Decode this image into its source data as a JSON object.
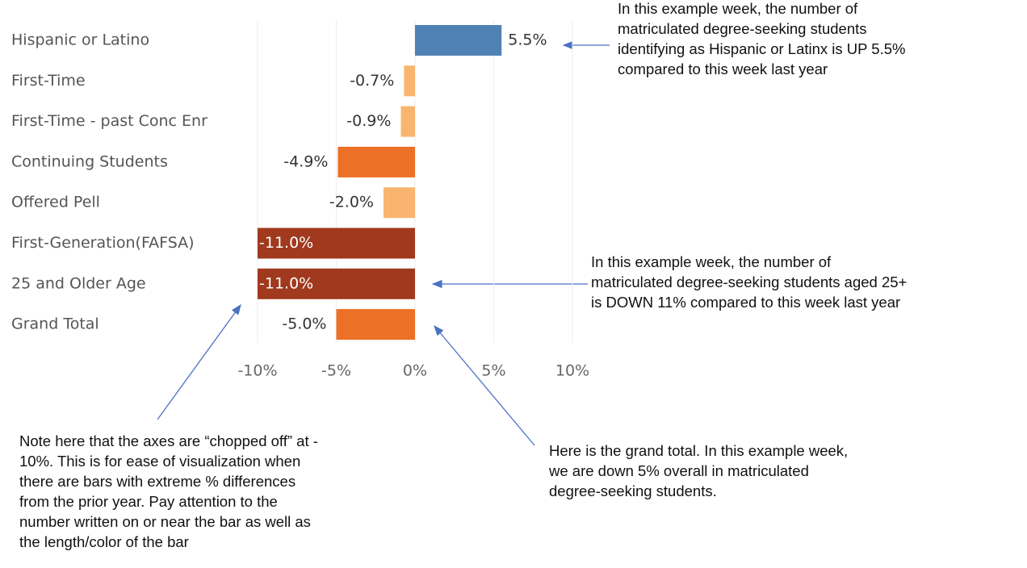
{
  "chart_data": {
    "type": "hbar",
    "categories": [
      "Hispanic or Latino",
      "First-Time",
      "First-Time - past Conc Enr",
      "Continuing Students",
      "Offered Pell",
      "First-Generation(FAFSA)",
      "25 and Older Age",
      "Grand Total"
    ],
    "values": [
      5.5,
      -0.7,
      -0.9,
      -4.9,
      -2.0,
      -11.0,
      -11.0,
      -5.0
    ],
    "value_labels": [
      "5.5%",
      "-0.7%",
      "-0.9%",
      "-4.9%",
      "-2.0%",
      "-11.0%",
      "-11.0%",
      "-5.0%"
    ],
    "colors": [
      "#4f81b5",
      "#f9b56f",
      "#f9b56f",
      "#ec7026",
      "#f9b56f",
      "#a0391e",
      "#a0391e",
      "#ec7026"
    ],
    "xlim": [
      -10,
      10
    ],
    "xticks": [
      {
        "value": -10,
        "label": "-10%"
      },
      {
        "value": -5,
        "label": "-5%"
      },
      {
        "value": 0,
        "label": "0%"
      },
      {
        "value": 5,
        "label": "5%"
      },
      {
        "value": 10,
        "label": "10%"
      }
    ],
    "grid": true,
    "annotations": [
      {
        "lines": [
          "In this example week, the number of",
          "matriculated degree-seeking students",
          "identifying as Hispanic or Latinx is UP 5.5%",
          "compared to this week last year"
        ]
      },
      {
        "lines": [
          "In this example week, the number of",
          "matriculated degree-seeking students aged 25+",
          "is DOWN 11% compared to this week last year"
        ]
      },
      {
        "lines": [
          "Note here that the axes are “chopped off” at -",
          "10%. This is for ease of visualization when",
          "there are bars with extreme % differences",
          "from the prior year. Pay attention to the",
          "number written on or near the bar as well as",
          "the length/color of the bar"
        ]
      },
      {
        "lines": [
          "Here is the grand total. In this example week,",
          "we are down 5% overall in matriculated",
          "degree-seeking students."
        ]
      }
    ]
  }
}
